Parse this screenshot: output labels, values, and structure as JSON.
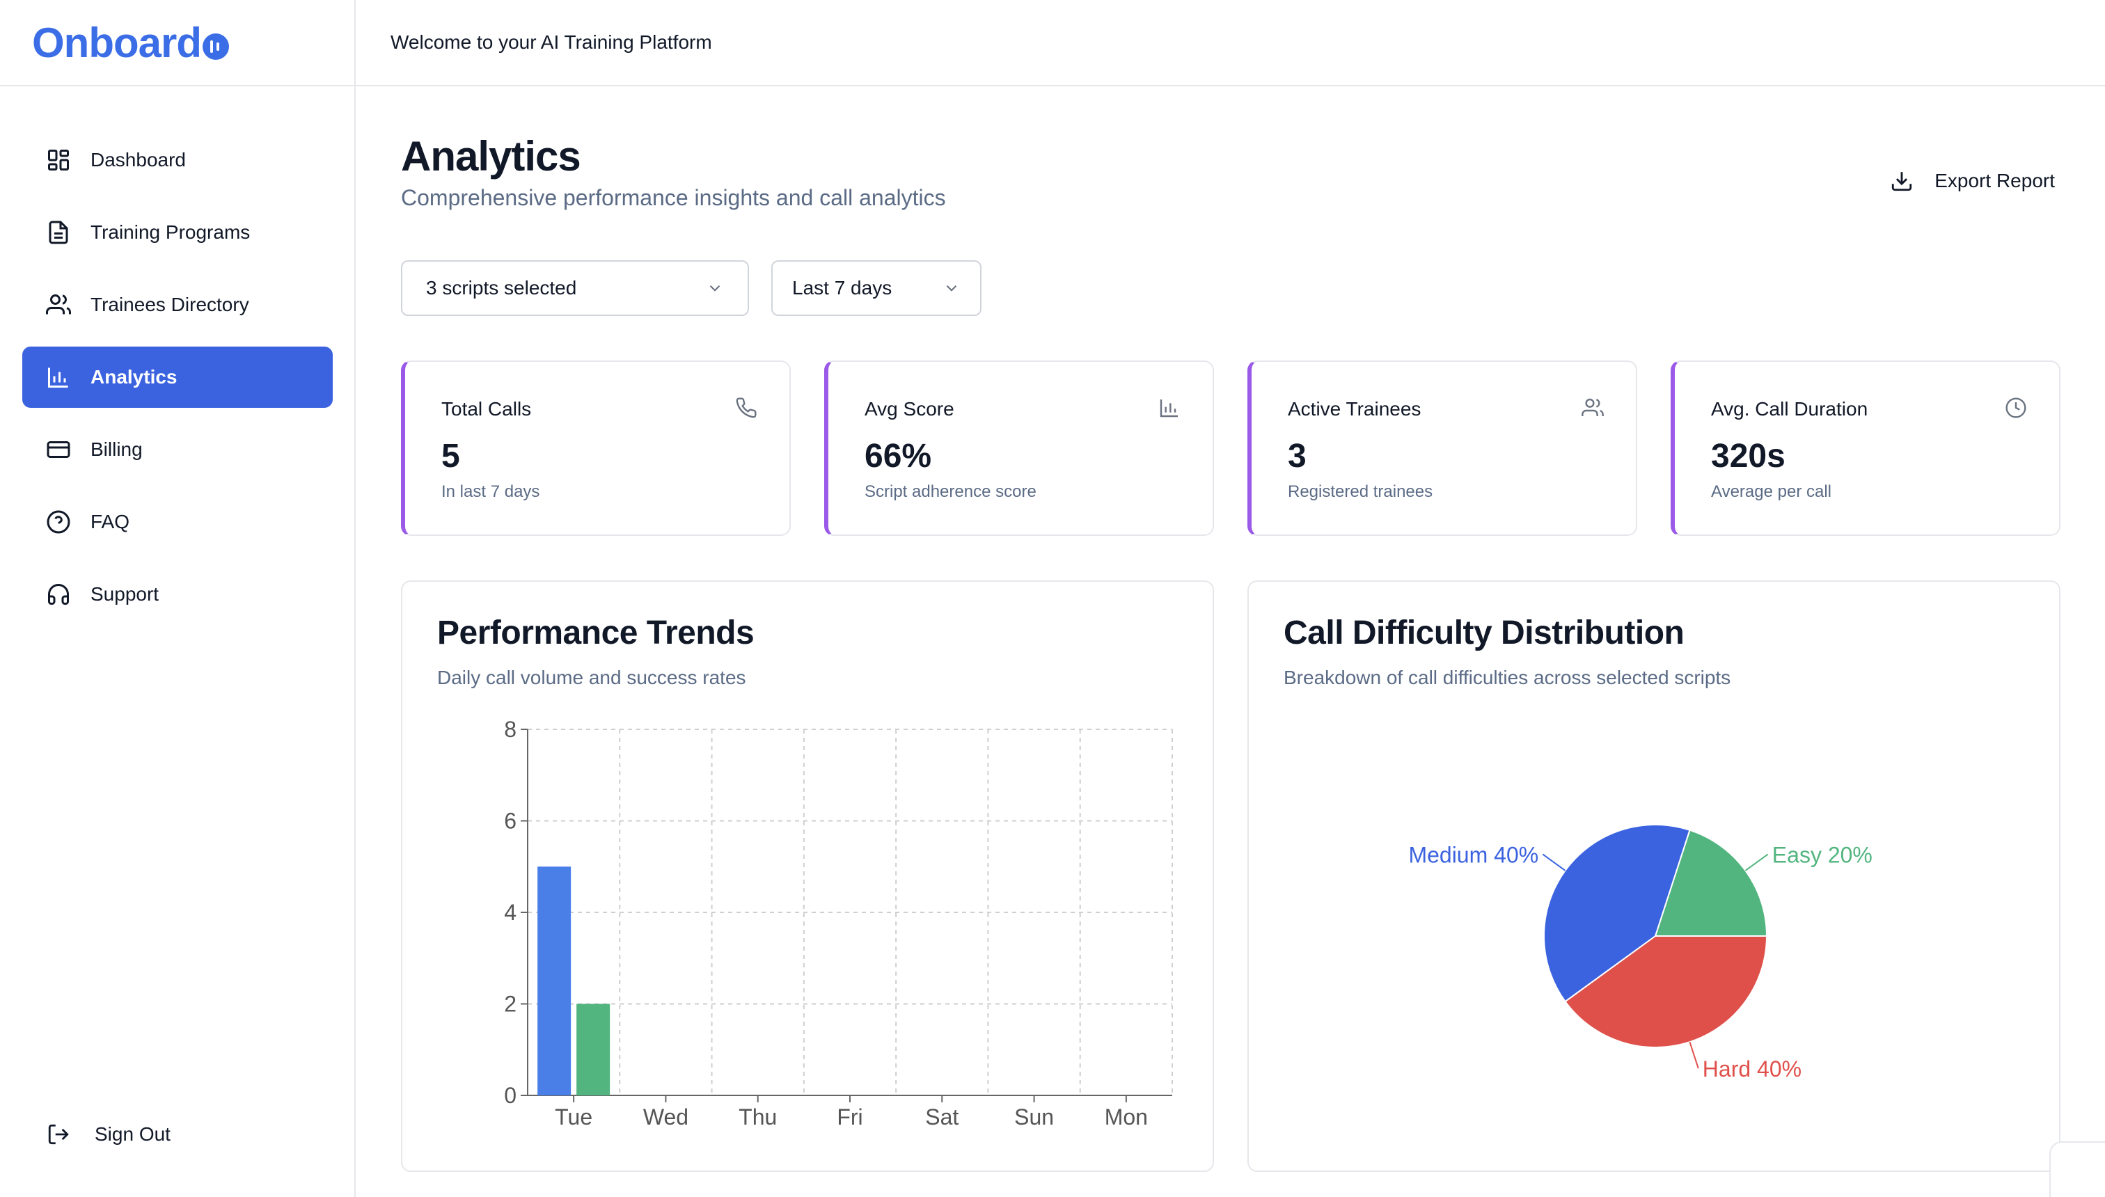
{
  "app": {
    "logo_text": "Onboard",
    "welcome": "Welcome to your AI Training Platform"
  },
  "sidebar": {
    "items": [
      {
        "label": "Dashboard",
        "icon": "dashboard-icon"
      },
      {
        "label": "Training Programs",
        "icon": "document-icon"
      },
      {
        "label": "Trainees Directory",
        "icon": "users-icon"
      },
      {
        "label": "Analytics",
        "icon": "bar-chart-icon",
        "active": true
      },
      {
        "label": "Billing",
        "icon": "credit-card-icon"
      },
      {
        "label": "FAQ",
        "icon": "help-circle-icon"
      },
      {
        "label": "Support",
        "icon": "headphones-icon"
      }
    ],
    "sign_out": "Sign Out"
  },
  "header": {
    "title": "Analytics",
    "subtitle": "Comprehensive performance insights and call analytics",
    "export_label": "Export Report"
  },
  "filters": {
    "scripts": "3 scripts selected",
    "range": "Last 7 days"
  },
  "stats": [
    {
      "label": "Total Calls",
      "value": "5",
      "sub": "In last 7 days",
      "icon": "phone-icon"
    },
    {
      "label": "Avg Score",
      "value": "66%",
      "sub": "Script adherence score",
      "icon": "bar-chart-icon"
    },
    {
      "label": "Active Trainees",
      "value": "3",
      "sub": "Registered trainees",
      "icon": "users-icon"
    },
    {
      "label": "Avg. Call Duration",
      "value": "320s",
      "sub": "Average per call",
      "icon": "clock-icon"
    }
  ],
  "colors": {
    "accent": "#3b63e0",
    "stat_border": "#9b59e8",
    "blue": "#4a7fe8",
    "green": "#52b57f",
    "red": "#e0504a"
  },
  "panels": {
    "trends": {
      "title": "Performance Trends",
      "subtitle": "Daily call volume and success rates"
    },
    "difficulty": {
      "title": "Call Difficulty Distribution",
      "subtitle": "Breakdown of call difficulties across selected scripts"
    }
  },
  "chart_data": [
    {
      "type": "bar",
      "categories": [
        "Tue",
        "Wed",
        "Thu",
        "Fri",
        "Sat",
        "Sun",
        "Mon"
      ],
      "series": [
        {
          "values": [
            5,
            0,
            0,
            0,
            0,
            0,
            0
          ],
          "color": "#4a7fe8"
        },
        {
          "values": [
            2,
            0,
            0,
            0,
            0,
            0,
            0
          ],
          "color": "#52b57f"
        }
      ],
      "yticks": [
        0,
        2,
        4,
        6,
        8
      ],
      "ylim": [
        0,
        8
      ],
      "grid": true
    },
    {
      "type": "pie",
      "slices": [
        {
          "label": "Easy",
          "value": 20,
          "text": "Easy 20%",
          "color": "#52b57f"
        },
        {
          "label": "Hard",
          "value": 40,
          "text": "Hard 40%",
          "color": "#e0504a"
        },
        {
          "label": "Medium",
          "value": 40,
          "text": "Medium 40%",
          "color": "#3b63e0"
        }
      ]
    }
  ]
}
